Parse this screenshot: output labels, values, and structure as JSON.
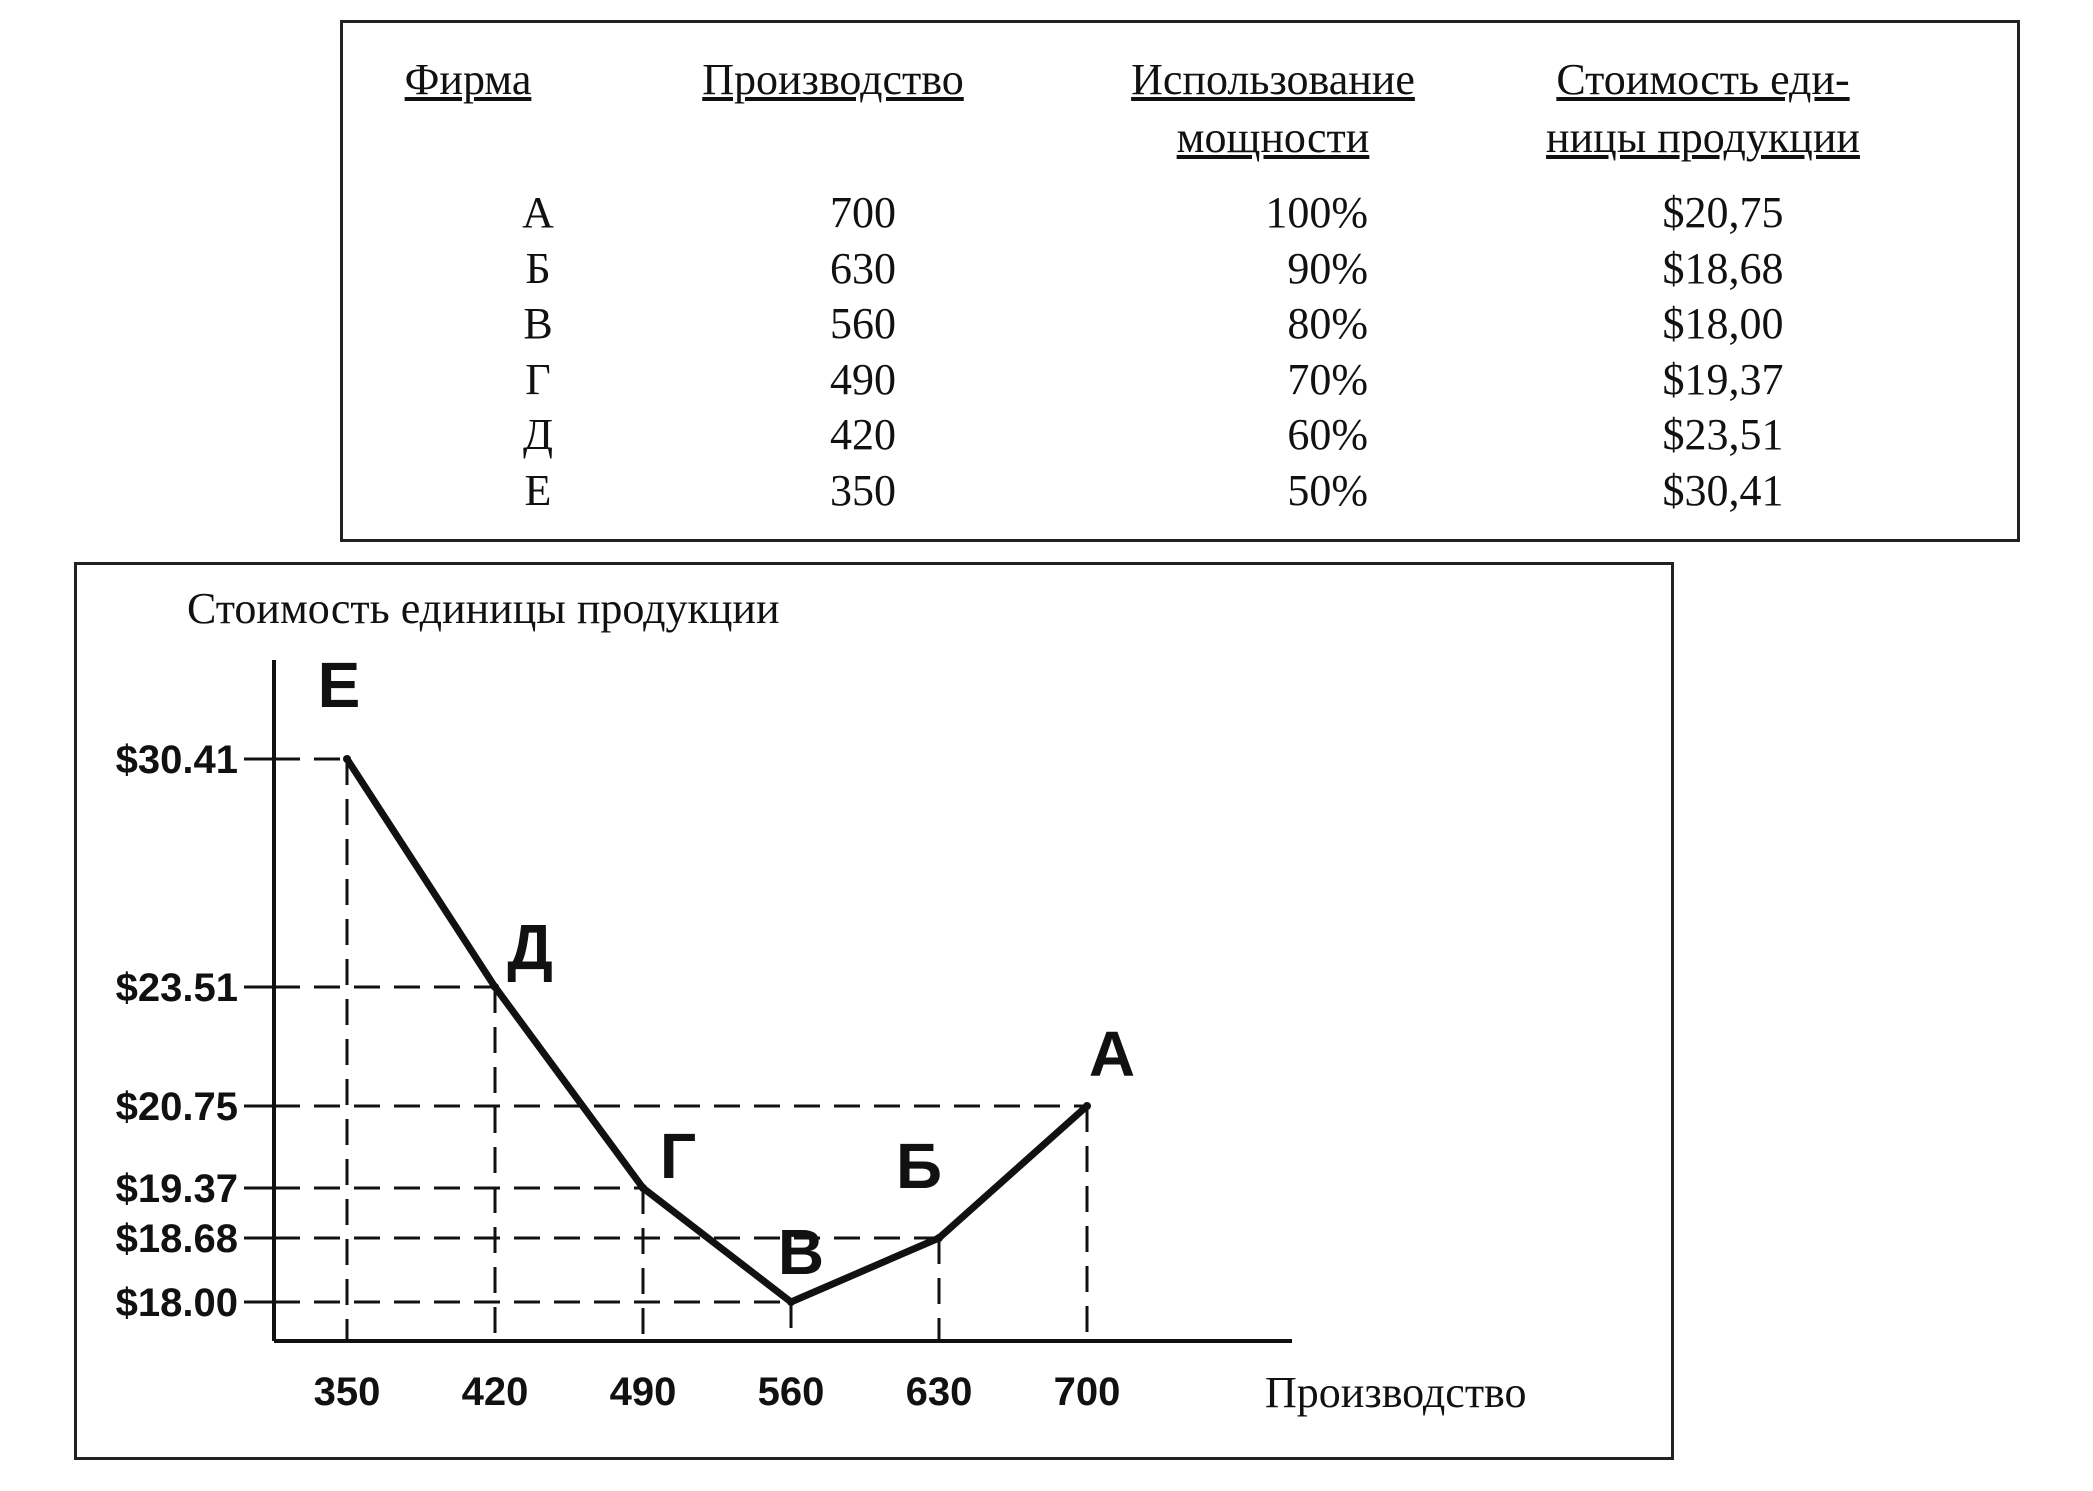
{
  "table": {
    "headers": [
      [
        "Фирма"
      ],
      [
        "Производство"
      ],
      [
        "Использование",
        "мощности"
      ],
      [
        "Стоимость еди-",
        "ницы продукции"
      ]
    ],
    "rows": [
      [
        "А",
        "700",
        "100%",
        "$20,75"
      ],
      [
        "Б",
        "630",
        "90%",
        "$18,68"
      ],
      [
        "В",
        "560",
        "80%",
        "$18,00"
      ],
      [
        "Г",
        "490",
        "70%",
        "$19,37"
      ],
      [
        "Д",
        "420",
        "60%",
        "$23,51"
      ],
      [
        "Е",
        "350",
        "50%",
        "$30,41"
      ]
    ]
  },
  "chart_data": {
    "type": "line",
    "ylabel": "Стоимость единицы продукции",
    "xlabel": "Производство",
    "x_ticks": [
      "350",
      "420",
      "490",
      "560",
      "630",
      "700"
    ],
    "y_ticks": [
      "$30.41",
      "$23.51",
      "$20.75",
      "$19.37",
      "$18.68",
      "$18.00"
    ],
    "points": [
      {
        "label": "Е",
        "x": 350,
        "y": 30.41
      },
      {
        "label": "Д",
        "x": 420,
        "y": 23.51
      },
      {
        "label": "Г",
        "x": 490,
        "y": 19.37
      },
      {
        "label": "В",
        "x": 560,
        "y": 18.0
      },
      {
        "label": "Б",
        "x": 630,
        "y": 18.68
      },
      {
        "label": "А",
        "x": 700,
        "y": 20.75
      }
    ],
    "grid": "dashed guide lines to axes",
    "legend": "none"
  }
}
